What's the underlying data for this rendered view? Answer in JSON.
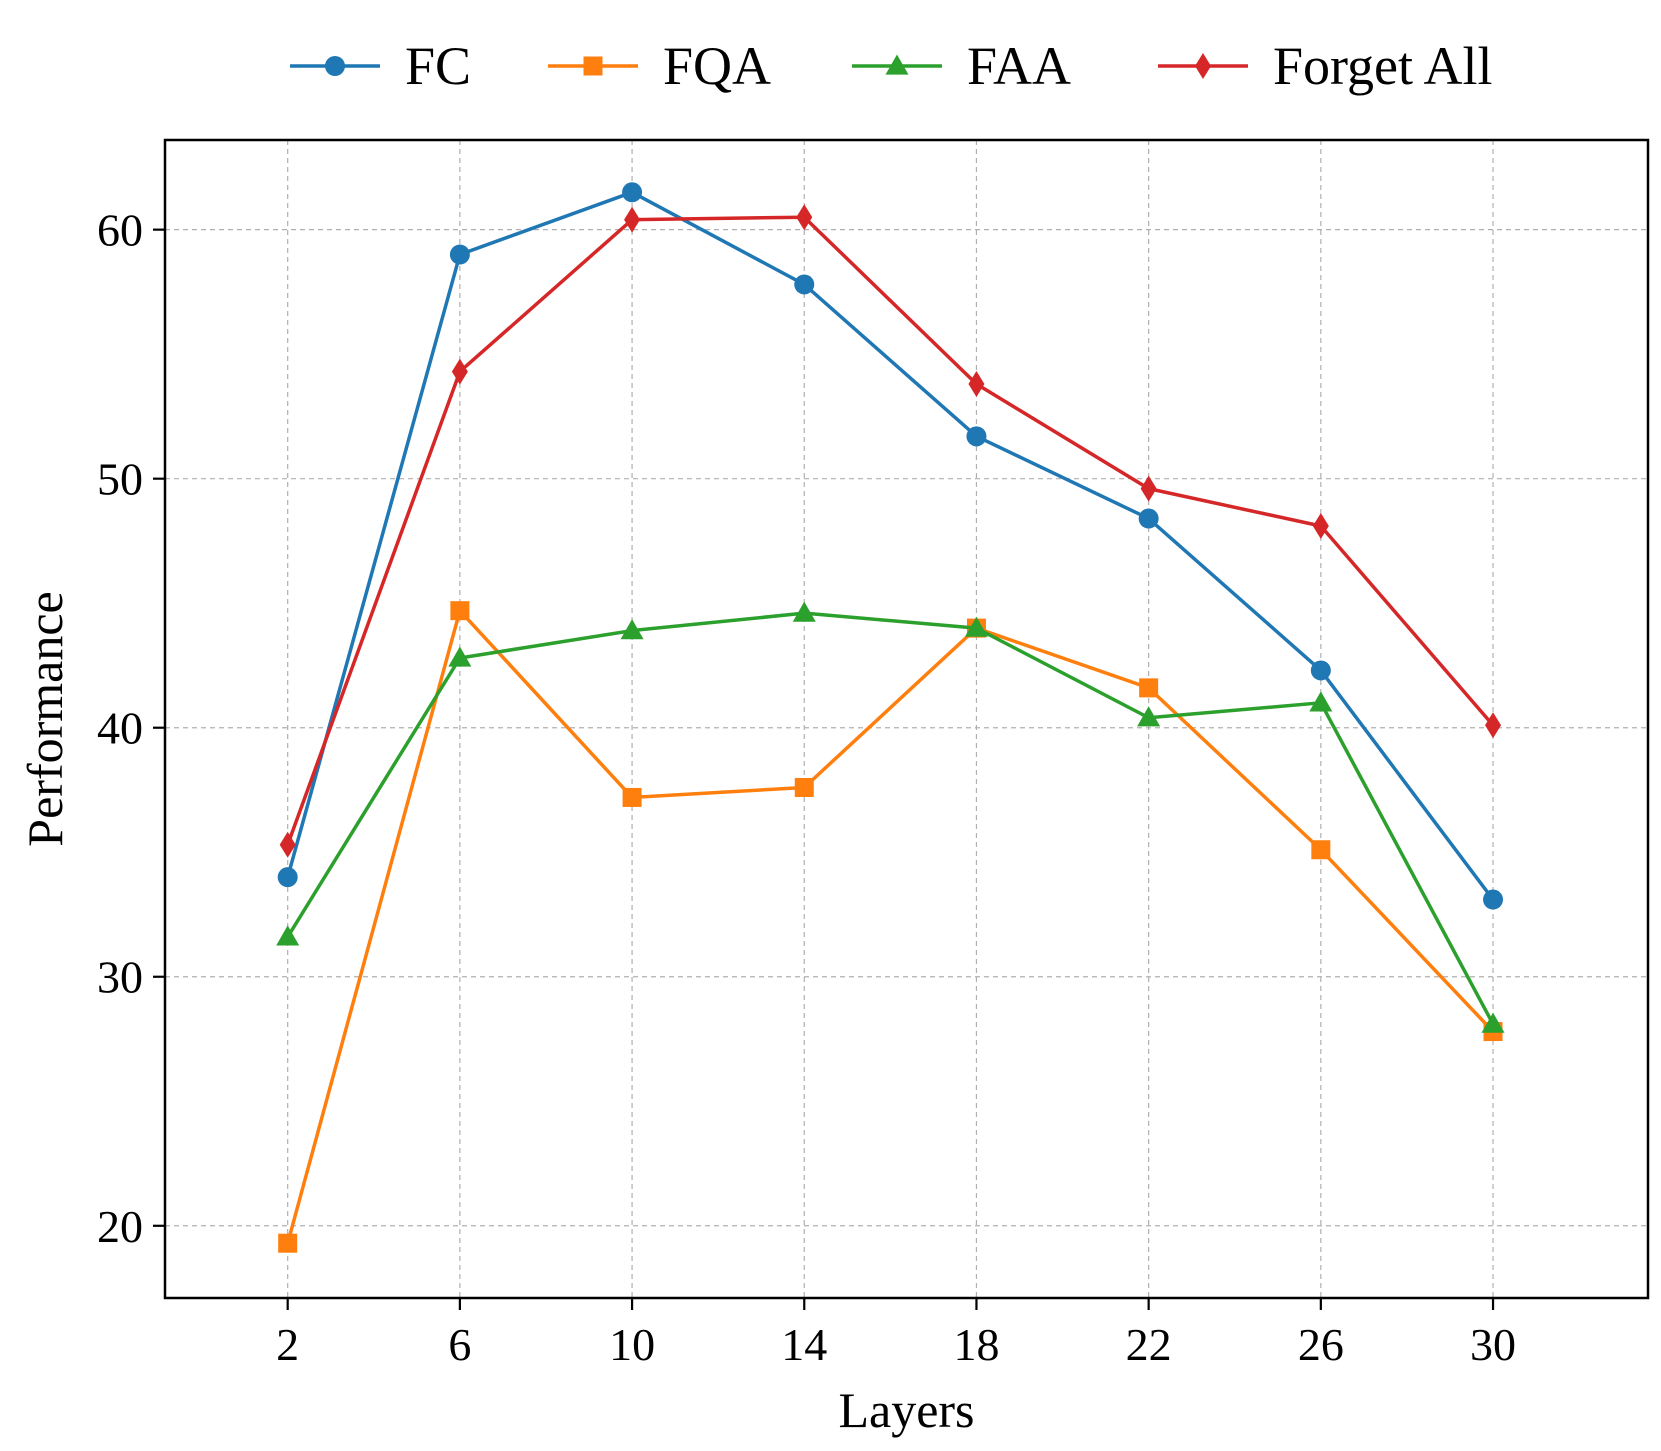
{
  "chart_data": {
    "type": "line",
    "title": "",
    "xlabel": "Layers",
    "ylabel": "Performance",
    "x": [
      2,
      6,
      10,
      14,
      18,
      22,
      26,
      30
    ],
    "xticks": [
      "2",
      "6",
      "10",
      "14",
      "18",
      "22",
      "26",
      "30"
    ],
    "yticks": [
      "20",
      "30",
      "40",
      "50",
      "60"
    ],
    "xlim": [
      -0.85,
      33.6
    ],
    "ylim": [
      17.1,
      63.6
    ],
    "grid": true,
    "legend_position": "top, above plot, single row",
    "series": [
      {
        "name": "FC",
        "color": "#1f77b4",
        "marker": "circle",
        "values": [
          34.0,
          59.0,
          61.5,
          57.8,
          51.7,
          48.4,
          42.3,
          33.1
        ]
      },
      {
        "name": "FQA",
        "color": "#ff7f0e",
        "marker": "square",
        "values": [
          19.3,
          44.7,
          37.2,
          37.6,
          44.0,
          41.6,
          35.1,
          27.8
        ]
      },
      {
        "name": "FAA",
        "color": "#2ca02c",
        "marker": "triangle",
        "values": [
          31.6,
          42.8,
          43.9,
          44.6,
          44.0,
          40.4,
          41.0,
          28.1
        ]
      },
      {
        "name": "Forget All",
        "color": "#d62728",
        "marker": "diamond",
        "values": [
          35.3,
          54.3,
          60.4,
          60.5,
          53.8,
          49.6,
          48.1,
          40.1
        ]
      }
    ]
  }
}
